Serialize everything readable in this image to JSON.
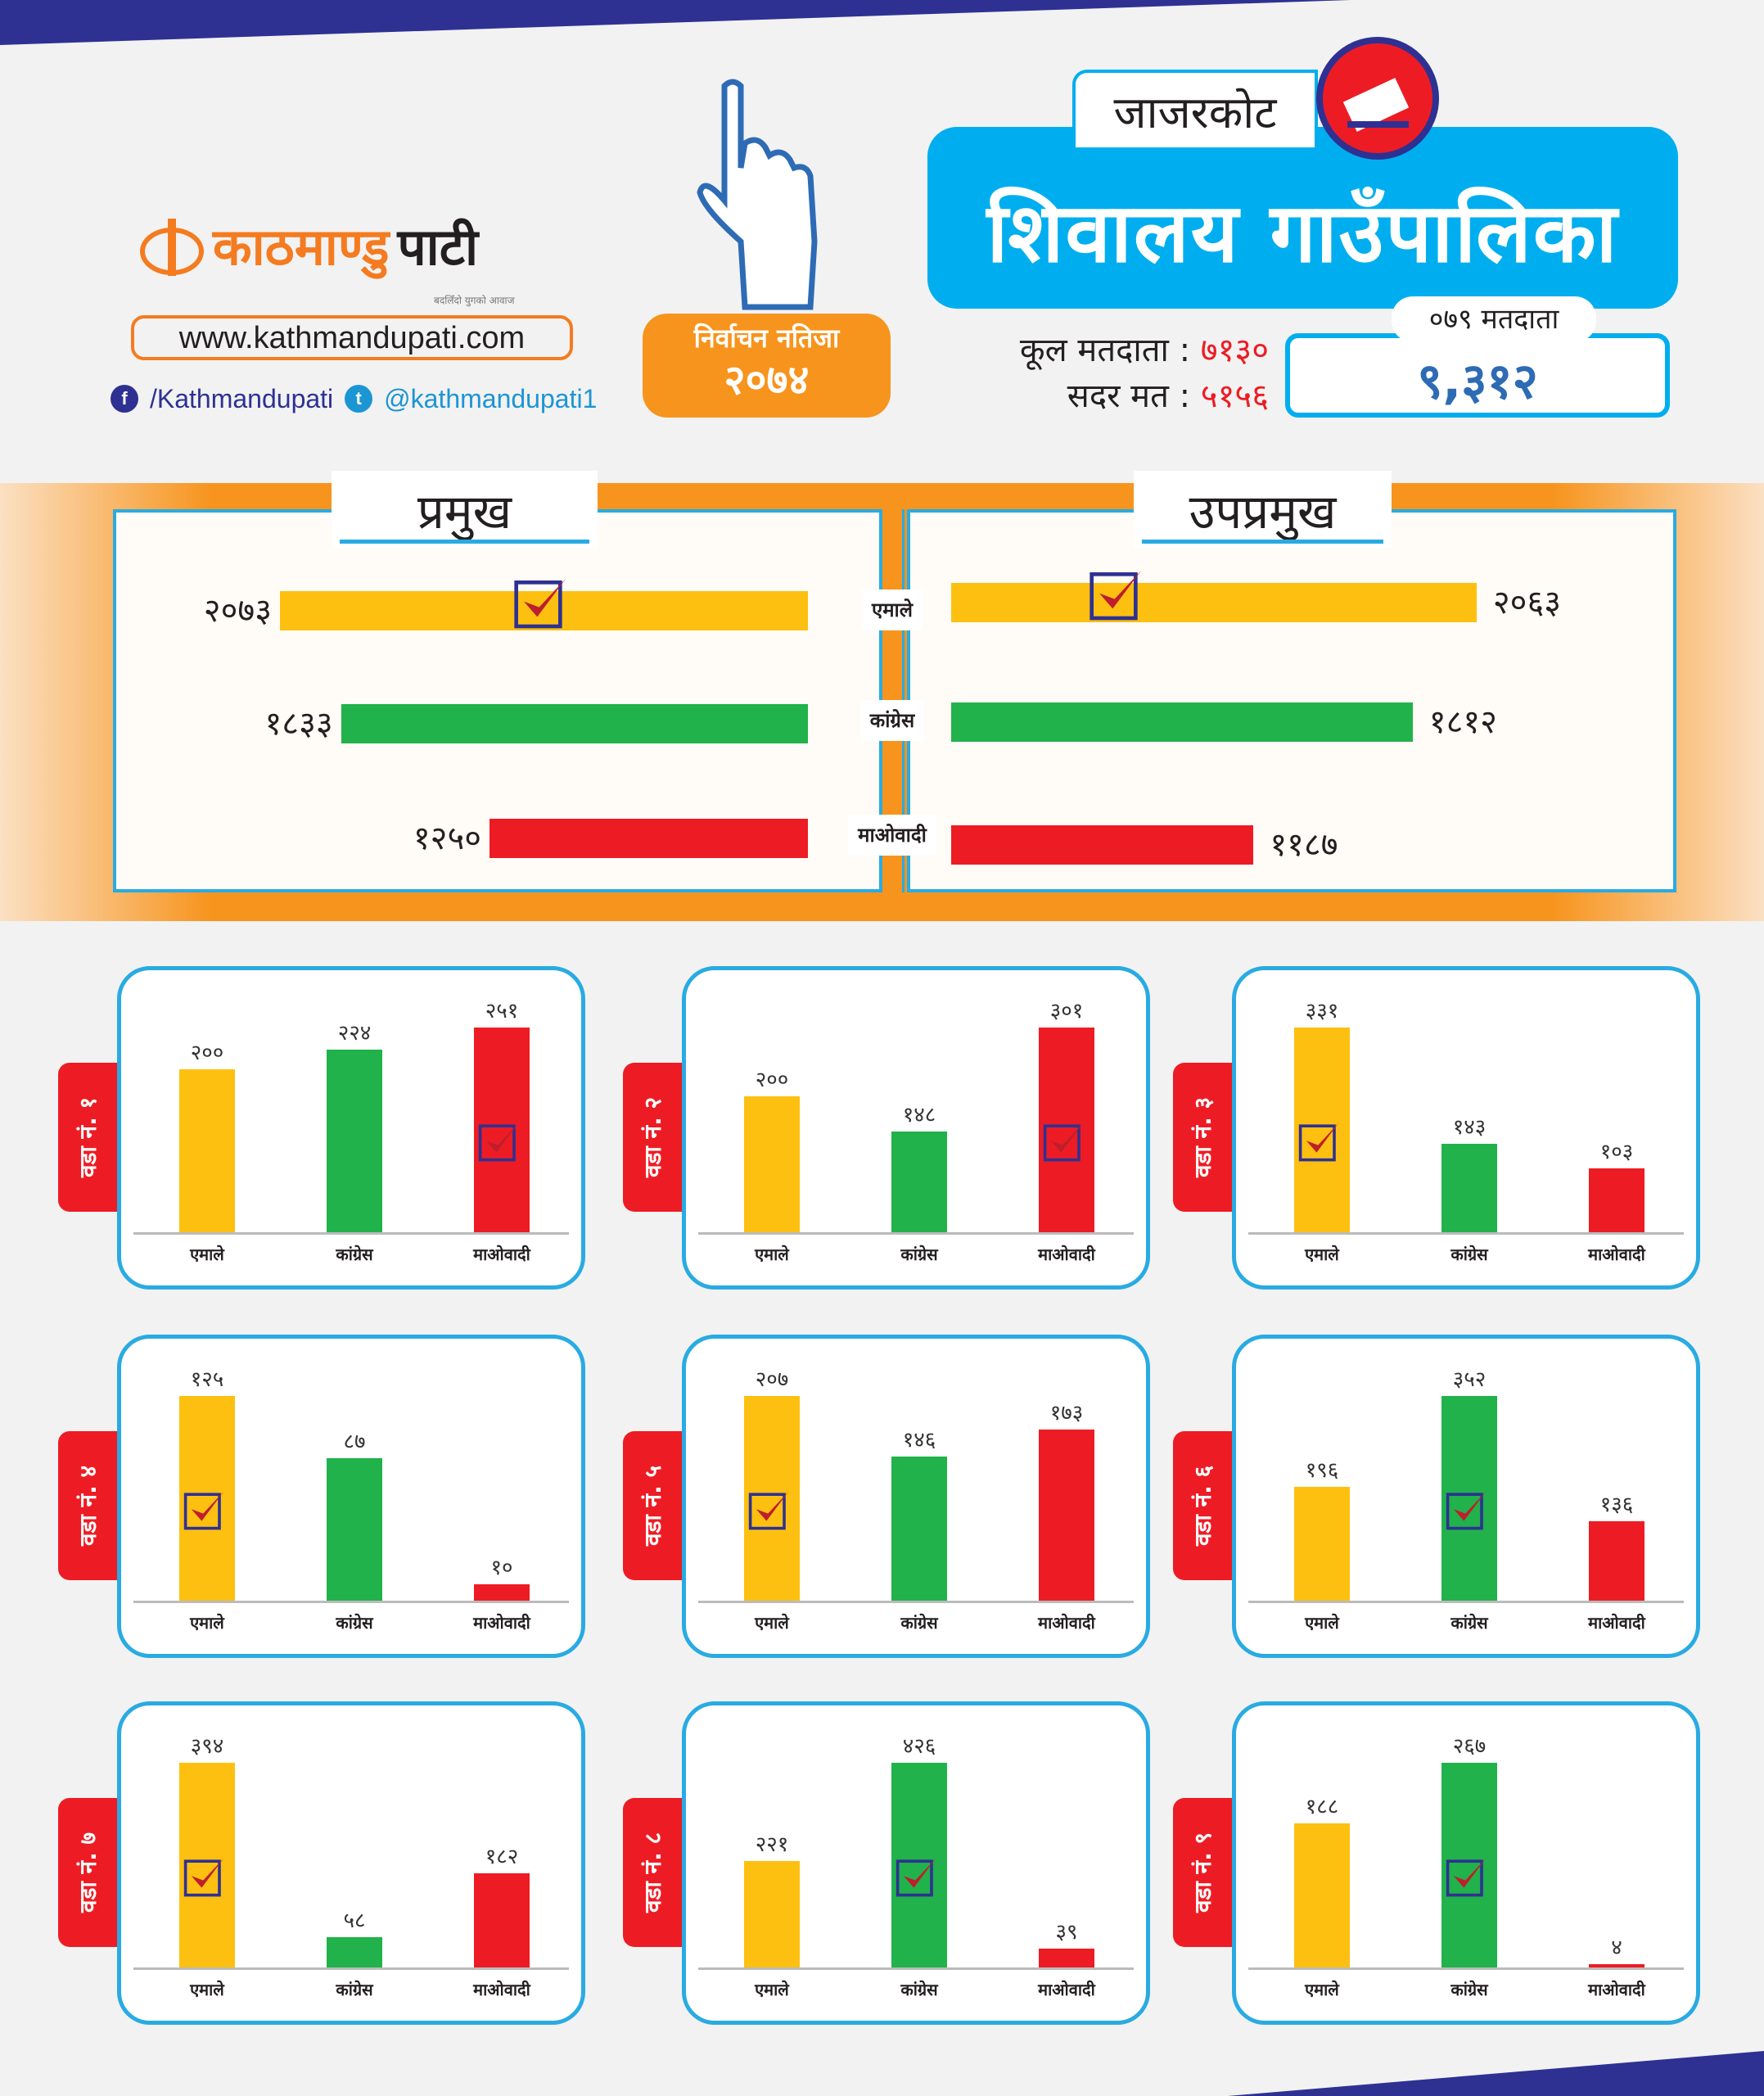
{
  "brand": {
    "name_part1": "काठमाण्डु",
    "name_part2": "पाटी",
    "tagline": "बदलिँदो युगको आवाज",
    "url": "www.kathmandupati.com",
    "facebook": "/Kathmandupati",
    "twitter": "@kathmandupati1"
  },
  "badge": {
    "line1": "निर्वाचन नतिजा",
    "line2": "२०७४"
  },
  "district": "जाजरकोट",
  "title": "शिवालय गाउँपालिका",
  "stats": {
    "total_voters_label": "कूल मतदाता :",
    "total_voters": "७१३०",
    "valid_label": "सदर मत :",
    "valid": "५१५६"
  },
  "voters079": {
    "label": "०७९ मतदाता",
    "value": "९,३१२"
  },
  "colors": {
    "uml": "#fdc010",
    "congress": "#21b24b",
    "maoist": "#ed1c24",
    "blue": "#29abe2",
    "orange": "#f7941d",
    "navy": "#2e3192",
    "check": "#be1e2d"
  },
  "parties": [
    "एमाले",
    "कांग्रेस",
    "माओवादी"
  ],
  "chart_data": [
    {
      "type": "bar",
      "title": "प्रमुख",
      "categories": [
        "एमाले",
        "कांग्रेस",
        "माओवादी"
      ],
      "values": [
        2073,
        1833,
        1250
      ],
      "labels": [
        "२०७३",
        "१८३३",
        "१२५०"
      ],
      "winner": 0
    },
    {
      "type": "bar",
      "title": "उपप्रमुख",
      "categories": [
        "एमाले",
        "कांग्रेस",
        "माओवादी"
      ],
      "values": [
        2063,
        1812,
        1187
      ],
      "labels": [
        "२०६३",
        "१८१२",
        "११८७"
      ],
      "winner": 0
    },
    {
      "type": "bar",
      "title": "वडा नं. १",
      "categories": [
        "एमाले",
        "कांग्रेस",
        "माओवादी"
      ],
      "values": [
        200,
        224,
        251
      ],
      "labels": [
        "२००",
        "२२४",
        "२५१"
      ],
      "winner": 2
    },
    {
      "type": "bar",
      "title": "वडा नं. २",
      "categories": [
        "एमाले",
        "कांग्रेस",
        "माओवादी"
      ],
      "values": [
        200,
        148,
        301
      ],
      "labels": [
        "२००",
        "१४८",
        "३०१"
      ],
      "winner": 2
    },
    {
      "type": "bar",
      "title": "वडा नं. ३",
      "categories": [
        "एमाले",
        "कांग्रेस",
        "माओवादी"
      ],
      "values": [
        331,
        143,
        103
      ],
      "labels": [
        "३३१",
        "१४३",
        "१०३"
      ],
      "winner": 0
    },
    {
      "type": "bar",
      "title": "वडा नं. ४",
      "categories": [
        "एमाले",
        "कांग्रेस",
        "माओवादी"
      ],
      "values": [
        125,
        87,
        10
      ],
      "labels": [
        "१२५",
        "८७",
        "१०"
      ],
      "winner": 0
    },
    {
      "type": "bar",
      "title": "वडा नं. ५",
      "categories": [
        "एमाले",
        "कांग्रेस",
        "माओवादी"
      ],
      "values": [
        207,
        146,
        173
      ],
      "labels": [
        "२०७",
        "१४६",
        "१७३"
      ],
      "winner": 0
    },
    {
      "type": "bar",
      "title": "वडा नं. ६",
      "categories": [
        "एमाले",
        "कांग्रेस",
        "माओवादी"
      ],
      "values": [
        196,
        352,
        136
      ],
      "labels": [
        "१९६",
        "३५२",
        "१३६"
      ],
      "winner": 1
    },
    {
      "type": "bar",
      "title": "वडा नं. ७",
      "categories": [
        "एमाले",
        "कांग्रेस",
        "माओवादी"
      ],
      "values": [
        394,
        58,
        182
      ],
      "labels": [
        "३९४",
        "५८",
        "१८२"
      ],
      "winner": 0
    },
    {
      "type": "bar",
      "title": "वडा नं. ८",
      "categories": [
        "एमाले",
        "कांग्रेस",
        "माओवादी"
      ],
      "values": [
        221,
        426,
        39
      ],
      "labels": [
        "२२१",
        "४२६",
        "३९"
      ],
      "winner": 1
    },
    {
      "type": "bar",
      "title": "वडा नं. ९",
      "categories": [
        "एमाले",
        "कांग्रेस",
        "माओवादी"
      ],
      "values": [
        188,
        267,
        4
      ],
      "labels": [
        "१८८",
        "२६७",
        "४"
      ],
      "winner": 1
    }
  ]
}
